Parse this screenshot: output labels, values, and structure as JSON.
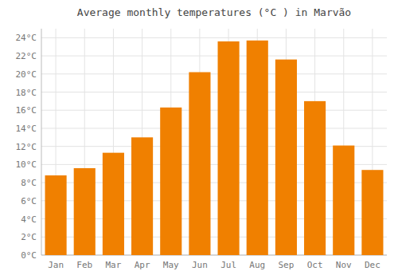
{
  "chart_data": {
    "type": "bar",
    "title": "Average monthly temperatures (°C ) in Marvão",
    "categories": [
      "Jan",
      "Feb",
      "Mar",
      "Apr",
      "May",
      "Jun",
      "Jul",
      "Aug",
      "Sep",
      "Oct",
      "Nov",
      "Dec"
    ],
    "values": [
      8.8,
      9.6,
      11.3,
      13.0,
      16.3,
      20.2,
      23.6,
      23.7,
      21.6,
      17.0,
      12.1,
      9.4
    ],
    "color": "#F08000",
    "ylim": [
      0,
      25
    ],
    "yticks": [
      {
        "value": 0,
        "label": "0°C"
      },
      {
        "value": 2,
        "label": "2°C"
      },
      {
        "value": 4,
        "label": "4°C"
      },
      {
        "value": 6,
        "label": "6°C"
      },
      {
        "value": 8,
        "label": "8°C"
      },
      {
        "value": 10,
        "label": "10°C"
      },
      {
        "value": 12,
        "label": "12°C"
      },
      {
        "value": 14,
        "label": "14°C"
      },
      {
        "value": 16,
        "label": "16°C"
      },
      {
        "value": 18,
        "label": "18°C"
      },
      {
        "value": 20,
        "label": "20°C"
      },
      {
        "value": 22,
        "label": "22°C"
      },
      {
        "value": 24,
        "label": "24°C"
      }
    ],
    "grid": true
  }
}
